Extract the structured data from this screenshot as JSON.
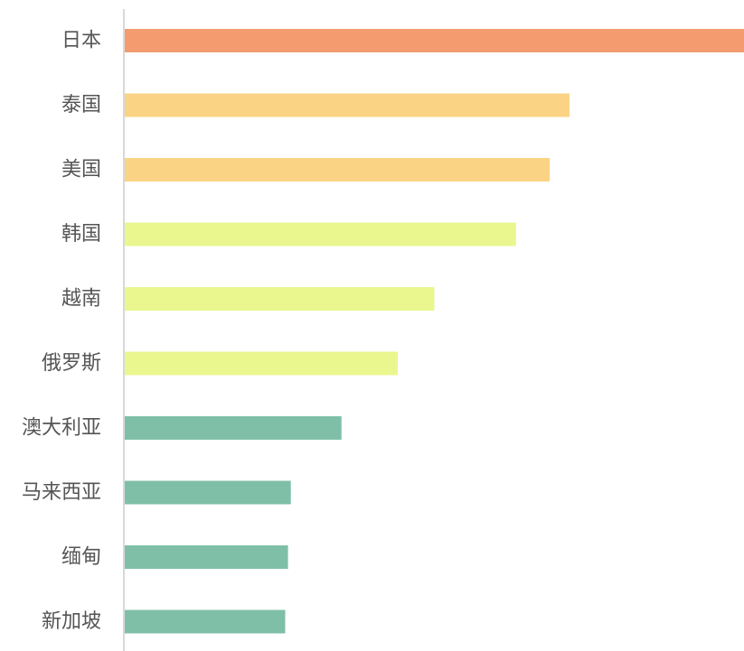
{
  "chart_data": {
    "type": "bar",
    "orientation": "horizontal",
    "title": "",
    "xlabel": "",
    "ylabel": "",
    "grid": false,
    "legend": "none",
    "xlim": [
      0,
      22
    ],
    "categories": [
      "日本",
      "泰国",
      "美国",
      "韩国",
      "越南",
      "俄罗斯",
      "澳大利亚",
      "马来西亚",
      "缅甸",
      "新加坡"
    ],
    "values": [
      22,
      15.8,
      15.1,
      13.9,
      11,
      9.7,
      7.7,
      5.9,
      5.8,
      5.7
    ],
    "colors": [
      "#f49c70",
      "#fad384",
      "#fad384",
      "#eaf78f",
      "#eaf78f",
      "#eaf78f",
      "#7fbfa8",
      "#7fbfa8",
      "#7fbfa8",
      "#7fbfa8"
    ]
  }
}
